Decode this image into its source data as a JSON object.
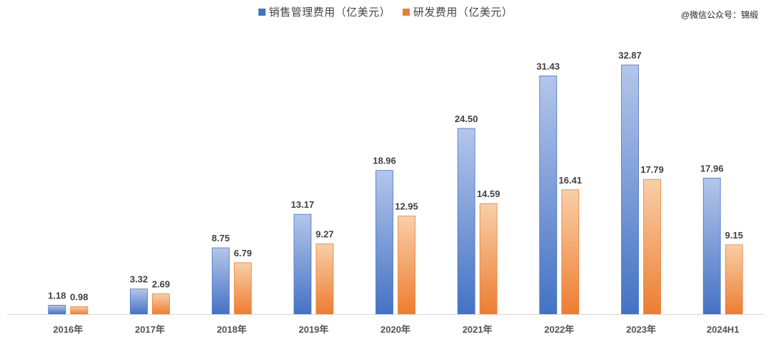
{
  "watermark": "@微信公众号：锦缎",
  "colors": {
    "sales_top": "#b4c6ea",
    "sales_bottom": "#4472c4",
    "rd_top": "#f8cfa8",
    "rd_bottom": "#ed7d31",
    "axis": "#d9d9d9"
  },
  "chart_data": {
    "type": "bar",
    "categories": [
      "2016年",
      "2017年",
      "2018年",
      "2019年",
      "2020年",
      "2021年",
      "2022年",
      "2023年",
      "2024H1"
    ],
    "series": [
      {
        "name": "销售管理费用（亿美元）",
        "values": [
          1.18,
          3.32,
          8.75,
          13.17,
          18.96,
          24.5,
          31.43,
          32.87,
          17.96
        ],
        "labels": [
          "1.18",
          "3.32",
          "8.75",
          "13.17",
          "18.96",
          "24.50",
          "31.43",
          "32.87",
          "17.96"
        ]
      },
      {
        "name": "研发费用（亿美元）",
        "values": [
          0.98,
          2.69,
          6.79,
          9.27,
          12.95,
          14.59,
          16.41,
          17.79,
          9.15
        ],
        "labels": [
          "0.98",
          "2.69",
          "6.79",
          "9.27",
          "12.95",
          "14.59",
          "16.41",
          "17.79",
          "9.15"
        ]
      }
    ],
    "ylim": [
      0,
      36
    ],
    "grid": false,
    "legend": "top-center"
  }
}
